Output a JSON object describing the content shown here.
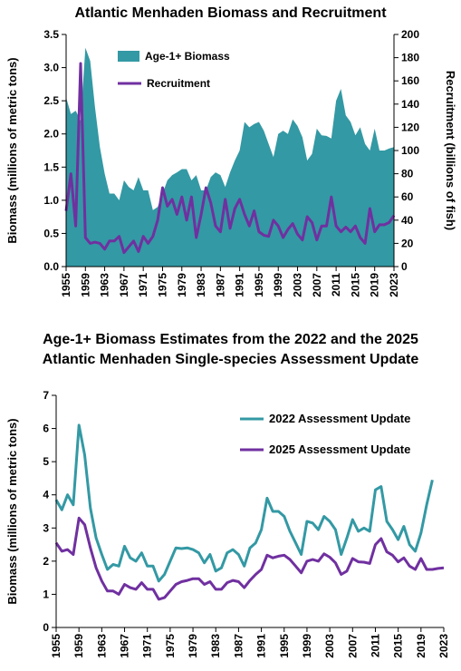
{
  "chart_data": [
    {
      "type": "area_line",
      "title": "Atlantic Menhaden Biomass and Recruitment",
      "ylabel": "Biomass (millions of metric tons)",
      "y2label": "Recruitment (billions of fish)",
      "x": [
        1955,
        1956,
        1957,
        1958,
        1959,
        1960,
        1961,
        1962,
        1963,
        1964,
        1965,
        1966,
        1967,
        1968,
        1969,
        1970,
        1971,
        1972,
        1973,
        1974,
        1975,
        1976,
        1977,
        1978,
        1979,
        1980,
        1981,
        1982,
        1983,
        1984,
        1985,
        1986,
        1987,
        1988,
        1989,
        1990,
        1991,
        1992,
        1993,
        1994,
        1995,
        1996,
        1997,
        1998,
        1999,
        2000,
        2001,
        2002,
        2003,
        2004,
        2005,
        2006,
        2007,
        2008,
        2009,
        2010,
        2011,
        2012,
        2013,
        2014,
        2015,
        2016,
        2017,
        2018,
        2019,
        2020,
        2021,
        2022,
        2023
      ],
      "xlim": [
        1955,
        2023
      ],
      "xticks": [
        1955,
        1959,
        1963,
        1967,
        1971,
        1975,
        1979,
        1983,
        1987,
        1991,
        1995,
        1999,
        2003,
        2007,
        2011,
        2015,
        2019,
        2023
      ],
      "ylim": [
        0,
        3.5
      ],
      "yticks": [
        {
          "value": 0,
          "label": "0.0"
        },
        {
          "value": 0.5,
          "label": "0.5"
        },
        {
          "value": 1,
          "label": "1.0"
        },
        {
          "value": 1.5,
          "label": "1.5"
        },
        {
          "value": 2,
          "label": "2.0"
        },
        {
          "value": 2.5,
          "label": "2.5"
        },
        {
          "value": 3,
          "label": "3.0"
        },
        {
          "value": 3.5,
          "label": "3.5"
        }
      ],
      "y2lim": [
        0,
        200
      ],
      "y2ticks": [
        0,
        20,
        40,
        60,
        80,
        100,
        120,
        140,
        160,
        180,
        200
      ],
      "series": [
        {
          "name": "Age-1+ Biomass",
          "color": "#3399a4",
          "kind": "area",
          "values": [
            2.55,
            2.3,
            2.35,
            2.2,
            3.3,
            3.1,
            2.4,
            1.8,
            1.4,
            1.1,
            1.1,
            1.0,
            1.3,
            1.2,
            1.15,
            1.35,
            1.15,
            1.15,
            0.85,
            0.9,
            1.1,
            1.3,
            1.38,
            1.42,
            1.47,
            1.47,
            1.3,
            1.38,
            1.15,
            1.15,
            1.35,
            1.42,
            1.38,
            1.2,
            1.42,
            1.6,
            1.75,
            2.18,
            2.1,
            2.15,
            2.18,
            2.05,
            1.85,
            1.65,
            2.0,
            2.05,
            2.0,
            2.22,
            2.12,
            1.95,
            1.6,
            1.7,
            2.08,
            1.98,
            1.97,
            1.93,
            2.5,
            2.68,
            2.28,
            2.18,
            1.98,
            2.1,
            1.85,
            1.75,
            2.08,
            1.75,
            1.75,
            1.78,
            1.8
          ]
        },
        {
          "name": "Recruitment",
          "color": "#7030a0",
          "kind": "line",
          "axis": "y2",
          "values": [
            48,
            80,
            35,
            175,
            25,
            20,
            21,
            20,
            15,
            22,
            22,
            26,
            12,
            17,
            22,
            13,
            26,
            20,
            26,
            40,
            68,
            52,
            58,
            45,
            60,
            40,
            60,
            25,
            45,
            68,
            55,
            35,
            30,
            58,
            33,
            50,
            58,
            45,
            35,
            48,
            30,
            27,
            26,
            40,
            35,
            25,
            32,
            37,
            28,
            23,
            43,
            38,
            23,
            35,
            35,
            60,
            35,
            30,
            34,
            30,
            35,
            25,
            20,
            50,
            30,
            36,
            36,
            38,
            44
          ]
        }
      ]
    },
    {
      "type": "line",
      "title": "Age-1+ Biomass Estimates from the 2022 and the 2025 Atlantic Menhaden Single-species Assessment Update",
      "ylabel": "Biomass (millions of metric tons)",
      "x": [
        1955,
        1956,
        1957,
        1958,
        1959,
        1960,
        1961,
        1962,
        1963,
        1964,
        1965,
        1966,
        1967,
        1968,
        1969,
        1970,
        1971,
        1972,
        1973,
        1974,
        1975,
        1976,
        1977,
        1978,
        1979,
        1980,
        1981,
        1982,
        1983,
        1984,
        1985,
        1986,
        1987,
        1988,
        1989,
        1990,
        1991,
        1992,
        1993,
        1994,
        1995,
        1996,
        1997,
        1998,
        1999,
        2000,
        2001,
        2002,
        2003,
        2004,
        2005,
        2006,
        2007,
        2008,
        2009,
        2010,
        2011,
        2012,
        2013,
        2014,
        2015,
        2016,
        2017,
        2018,
        2019,
        2020,
        2021,
        2022,
        2023
      ],
      "xlim": [
        1955,
        2023
      ],
      "xticks": [
        1955,
        1959,
        1963,
        1967,
        1971,
        1975,
        1979,
        1983,
        1987,
        1991,
        1995,
        1999,
        2003,
        2007,
        2011,
        2015,
        2019,
        2023
      ],
      "ylim": [
        0,
        7
      ],
      "yticks": [
        0,
        1,
        2,
        3,
        4,
        5,
        6,
        7
      ],
      "series": [
        {
          "name": "2022 Assessment Update",
          "color": "#3399a4",
          "values": [
            3.85,
            3.55,
            4.0,
            3.7,
            6.1,
            5.2,
            3.6,
            2.7,
            2.2,
            1.75,
            1.9,
            1.85,
            2.45,
            2.1,
            2.0,
            2.25,
            1.85,
            1.85,
            1.4,
            1.6,
            2.0,
            2.4,
            2.38,
            2.4,
            2.35,
            2.25,
            1.95,
            2.2,
            1.7,
            1.8,
            2.25,
            2.35,
            2.2,
            1.85,
            2.4,
            2.55,
            2.95,
            3.9,
            3.5,
            3.5,
            3.35,
            2.9,
            2.55,
            2.2,
            3.2,
            3.15,
            2.95,
            3.35,
            3.2,
            2.95,
            2.2,
            2.7,
            3.25,
            2.9,
            3.0,
            2.9,
            4.15,
            4.25,
            3.2,
            2.95,
            2.65,
            3.05,
            2.5,
            2.3,
            2.85,
            3.7,
            4.45,
            null,
            null
          ]
        },
        {
          "name": "2025 Assessment Update",
          "color": "#7030a0",
          "values": [
            2.55,
            2.3,
            2.35,
            2.2,
            3.3,
            3.1,
            2.4,
            1.8,
            1.4,
            1.1,
            1.1,
            1.0,
            1.3,
            1.2,
            1.15,
            1.35,
            1.15,
            1.15,
            0.85,
            0.9,
            1.1,
            1.3,
            1.38,
            1.42,
            1.47,
            1.47,
            1.3,
            1.38,
            1.15,
            1.15,
            1.35,
            1.42,
            1.38,
            1.2,
            1.42,
            1.6,
            1.75,
            2.18,
            2.1,
            2.15,
            2.18,
            2.05,
            1.85,
            1.65,
            2.0,
            2.05,
            2.0,
            2.22,
            2.12,
            1.95,
            1.6,
            1.7,
            2.08,
            1.98,
            1.97,
            1.93,
            2.5,
            2.68,
            2.28,
            2.18,
            1.98,
            2.1,
            1.85,
            1.75,
            2.08,
            1.75,
            1.75,
            1.78,
            1.8
          ]
        }
      ]
    }
  ]
}
